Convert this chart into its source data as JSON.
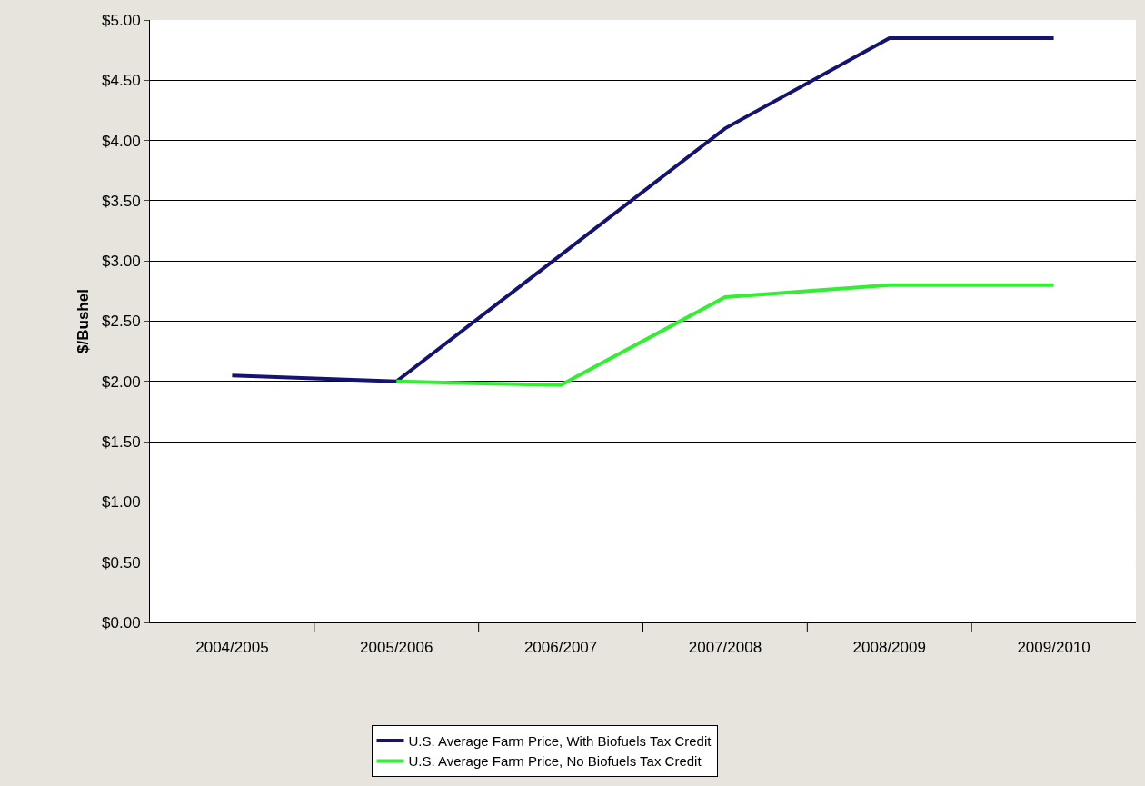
{
  "chart_data": {
    "type": "line",
    "ylabel": "$/Bushel",
    "categories": [
      "2004/2005",
      "2005/2006",
      "2006/2007",
      "2007/2008",
      "2008/2009",
      "2009/2010"
    ],
    "series": [
      {
        "name": "U.S. Average Farm Price, With Biofuels Tax Credit",
        "color": "#141470",
        "values": [
          2.05,
          2.0,
          3.05,
          4.1,
          4.85,
          4.85
        ]
      },
      {
        "name": "U.S. Average Farm Price, No Biofuels Tax Credit",
        "color": "#33ee33",
        "values": [
          null,
          2.0,
          1.97,
          2.7,
          2.8,
          2.8
        ]
      }
    ],
    "ylim": [
      0,
      5
    ],
    "yticks": [
      {
        "value": 0,
        "label": "$0.00"
      },
      {
        "value": 0.5,
        "label": "$0.50"
      },
      {
        "value": 1,
        "label": "$1.00"
      },
      {
        "value": 1.5,
        "label": "$1.50"
      },
      {
        "value": 2,
        "label": "$2.00"
      },
      {
        "value": 2.5,
        "label": "$2.50"
      },
      {
        "value": 3,
        "label": "$3.00"
      },
      {
        "value": 3.5,
        "label": "$3.50"
      },
      {
        "value": 4,
        "label": "$4.00"
      },
      {
        "value": 4.5,
        "label": "$4.50"
      },
      {
        "value": 5,
        "label": "$5.00"
      }
    ],
    "grid": "y",
    "legend": "bottom",
    "marker": "none",
    "line_style": "solid"
  }
}
